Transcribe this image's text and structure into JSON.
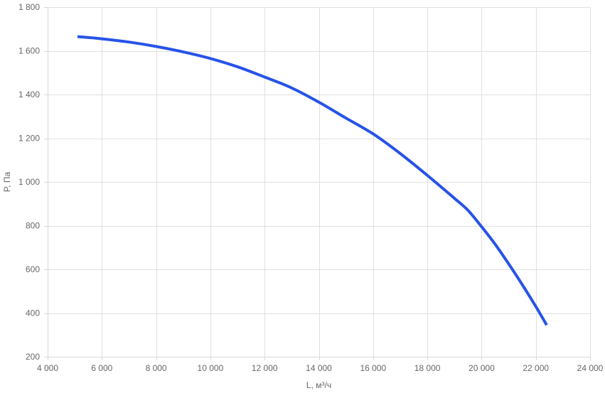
{
  "chart_data": {
    "type": "line",
    "title": "",
    "xlabel": "L, м³/ч",
    "ylabel": "P, Па",
    "xlim": [
      4000,
      24000
    ],
    "ylim": [
      200,
      1800
    ],
    "grid": true,
    "x_ticks": [
      4000,
      6000,
      8000,
      10000,
      12000,
      14000,
      16000,
      18000,
      20000,
      22000,
      24000
    ],
    "x_tick_labels": [
      "4 000",
      "6 000",
      "8 000",
      "10 000",
      "12 000",
      "14 000",
      "16 000",
      "18 000",
      "20 000",
      "22 000",
      "24 000"
    ],
    "y_ticks": [
      200,
      400,
      600,
      800,
      1000,
      1200,
      1400,
      1600,
      1800
    ],
    "y_tick_labels": [
      "200",
      "400",
      "600",
      "800",
      "1 000",
      "1 200",
      "1 400",
      "1 600",
      "1 800"
    ],
    "series": [
      {
        "color": "#2653e8",
        "x": [
          5100,
          6000,
          7000,
          8000,
          9000,
          10000,
          11000,
          12000,
          13000,
          14000,
          15000,
          16000,
          17000,
          18000,
          19000,
          19500,
          20000,
          20500,
          21000,
          21500,
          22000,
          22400
        ],
        "y": [
          1665,
          1655,
          1640,
          1620,
          1595,
          1565,
          1527,
          1480,
          1430,
          1365,
          1292,
          1220,
          1130,
          1030,
          925,
          870,
          795,
          715,
          625,
          530,
          430,
          345
        ]
      }
    ]
  }
}
